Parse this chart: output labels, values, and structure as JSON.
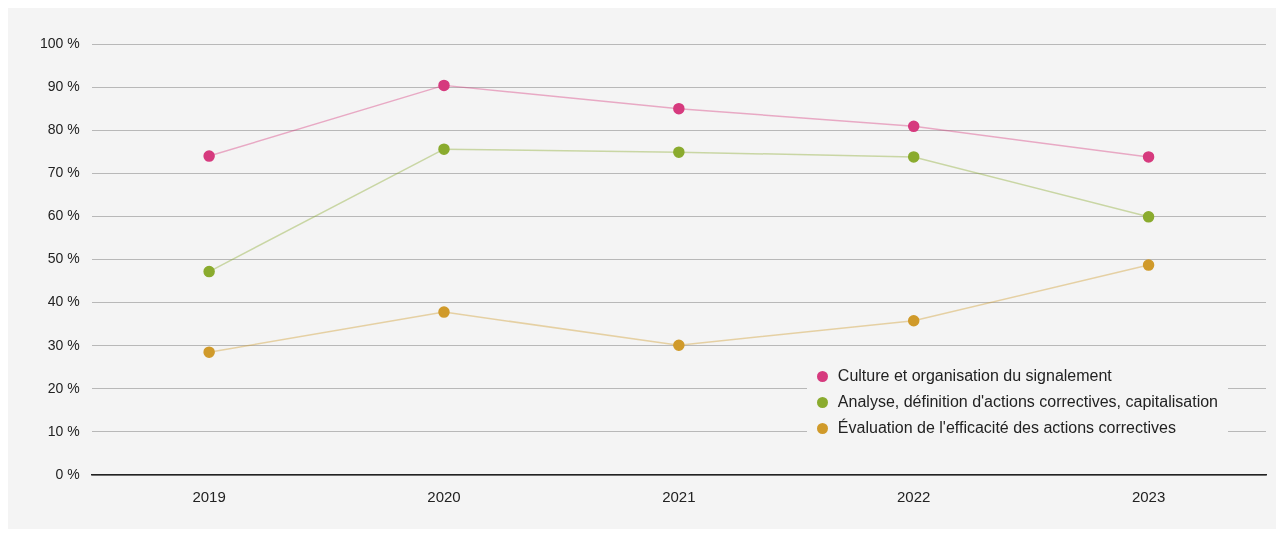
{
  "chart_data": {
    "type": "line",
    "categories": [
      "2019",
      "2020",
      "2021",
      "2022",
      "2023"
    ],
    "series": [
      {
        "name": "Culture et organisation du signalement",
        "color": "#d63a7e",
        "values": [
          74,
          90.4,
          85,
          80.9,
          73.8
        ]
      },
      {
        "name": "Analyse, définition d'actions correctives, capitalisation",
        "color": "#8aab2e",
        "values": [
          47.2,
          75.6,
          74.9,
          73.8,
          59.9
        ]
      },
      {
        "name": "Évaluation de l'efficacité des actions correctives",
        "color": "#d09a2a",
        "values": [
          28.5,
          37.8,
          30.1,
          35.8,
          48.7
        ]
      }
    ],
    "ylim": [
      0,
      100
    ],
    "yticks": [
      {
        "value": 0,
        "label": "0 %"
      },
      {
        "value": 10,
        "label": "10 %"
      },
      {
        "value": 20,
        "label": "20 %"
      },
      {
        "value": 30,
        "label": "30 %"
      },
      {
        "value": 40,
        "label": "40 %"
      },
      {
        "value": 50,
        "label": "50 %"
      },
      {
        "value": 60,
        "label": "60 %"
      },
      {
        "value": 70,
        "label": "70 %"
      },
      {
        "value": 80,
        "label": "80 %"
      },
      {
        "value": 90,
        "label": "90 %"
      },
      {
        "value": 100,
        "label": "100 %"
      }
    ],
    "grid": "y",
    "legend": "bottom right",
    "marker": "circle",
    "line_style": "solid"
  }
}
